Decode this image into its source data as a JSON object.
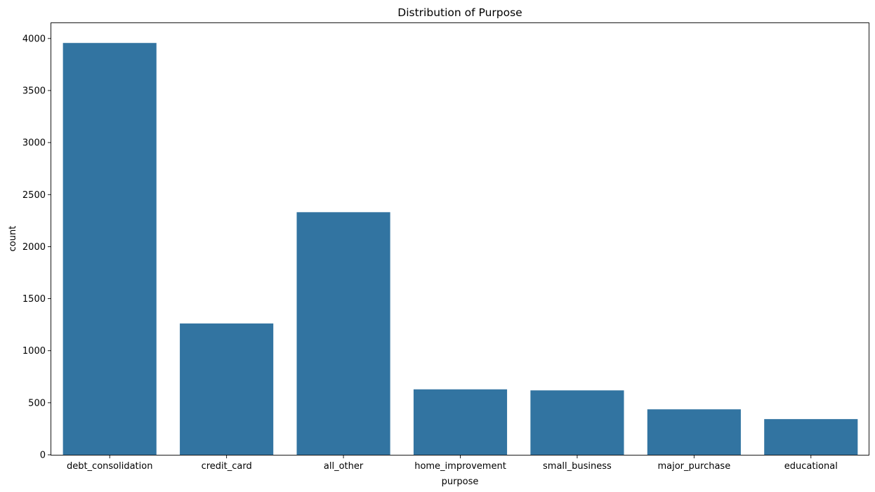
{
  "chart_data": {
    "type": "bar",
    "title": "Distribution of Purpose",
    "xlabel": "purpose",
    "ylabel": "count",
    "categories": [
      "debt_consolidation",
      "credit_card",
      "all_other",
      "home_improvement",
      "small_business",
      "major_purchase",
      "educational"
    ],
    "values": [
      3957,
      1262,
      2331,
      629,
      619,
      437,
      343
    ],
    "ylim": [
      0,
      4154
    ],
    "yticks": [
      0,
      500,
      1000,
      1500,
      2000,
      2500,
      3000,
      3500,
      4000
    ],
    "grid": false,
    "legend": "none",
    "bar_color": "#3274a1"
  }
}
